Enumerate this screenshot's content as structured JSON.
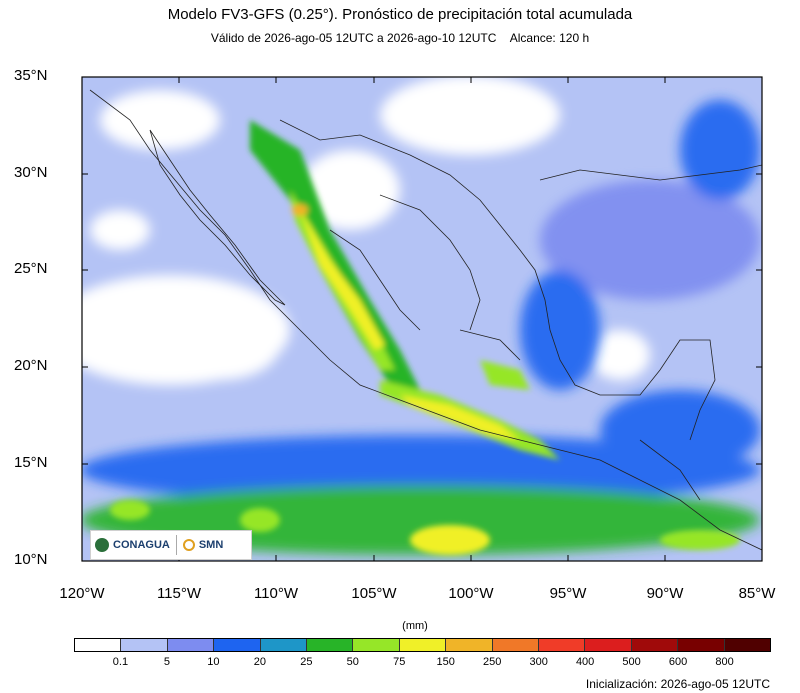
{
  "title": "Modelo FV3-GFS (0.25°). Pronóstico de precipitación total acumulada",
  "subtitle": {
    "valid": "Válido de 2026-ago-05 12UTC a 2026-ago-10 12UTC",
    "range": "Alcance: 120 h"
  },
  "axes": {
    "lat_labels": [
      "35°N",
      "30°N",
      "25°N",
      "20°N",
      "15°N",
      "10°N"
    ],
    "lon_labels": [
      "120°W",
      "115°W",
      "110°W",
      "105°W",
      "100°W",
      "95°W",
      "90°W",
      "85°W"
    ],
    "lat_range": [
      10,
      35
    ],
    "lon_range": [
      -120,
      -85
    ]
  },
  "colorbar": {
    "units": "(mm)",
    "labels": [
      "0.1",
      "5",
      "10",
      "20",
      "25",
      "50",
      "75",
      "150",
      "250",
      "300",
      "400",
      "500",
      "600",
      "800"
    ],
    "colors": [
      "#ffffff",
      "#b4c3f5",
      "#7d8cf0",
      "#1e64f0",
      "#1e96c8",
      "#28b428",
      "#96e628",
      "#f0f028",
      "#f0b428",
      "#f07828",
      "#f03c28",
      "#dc1e1e",
      "#a00a0a",
      "#780000",
      "#500000"
    ]
  },
  "logos": {
    "conagua": "CONAGUA",
    "smn": "SMN"
  },
  "initialization": "Inicialización: 2026-ago-05 12UTC"
}
